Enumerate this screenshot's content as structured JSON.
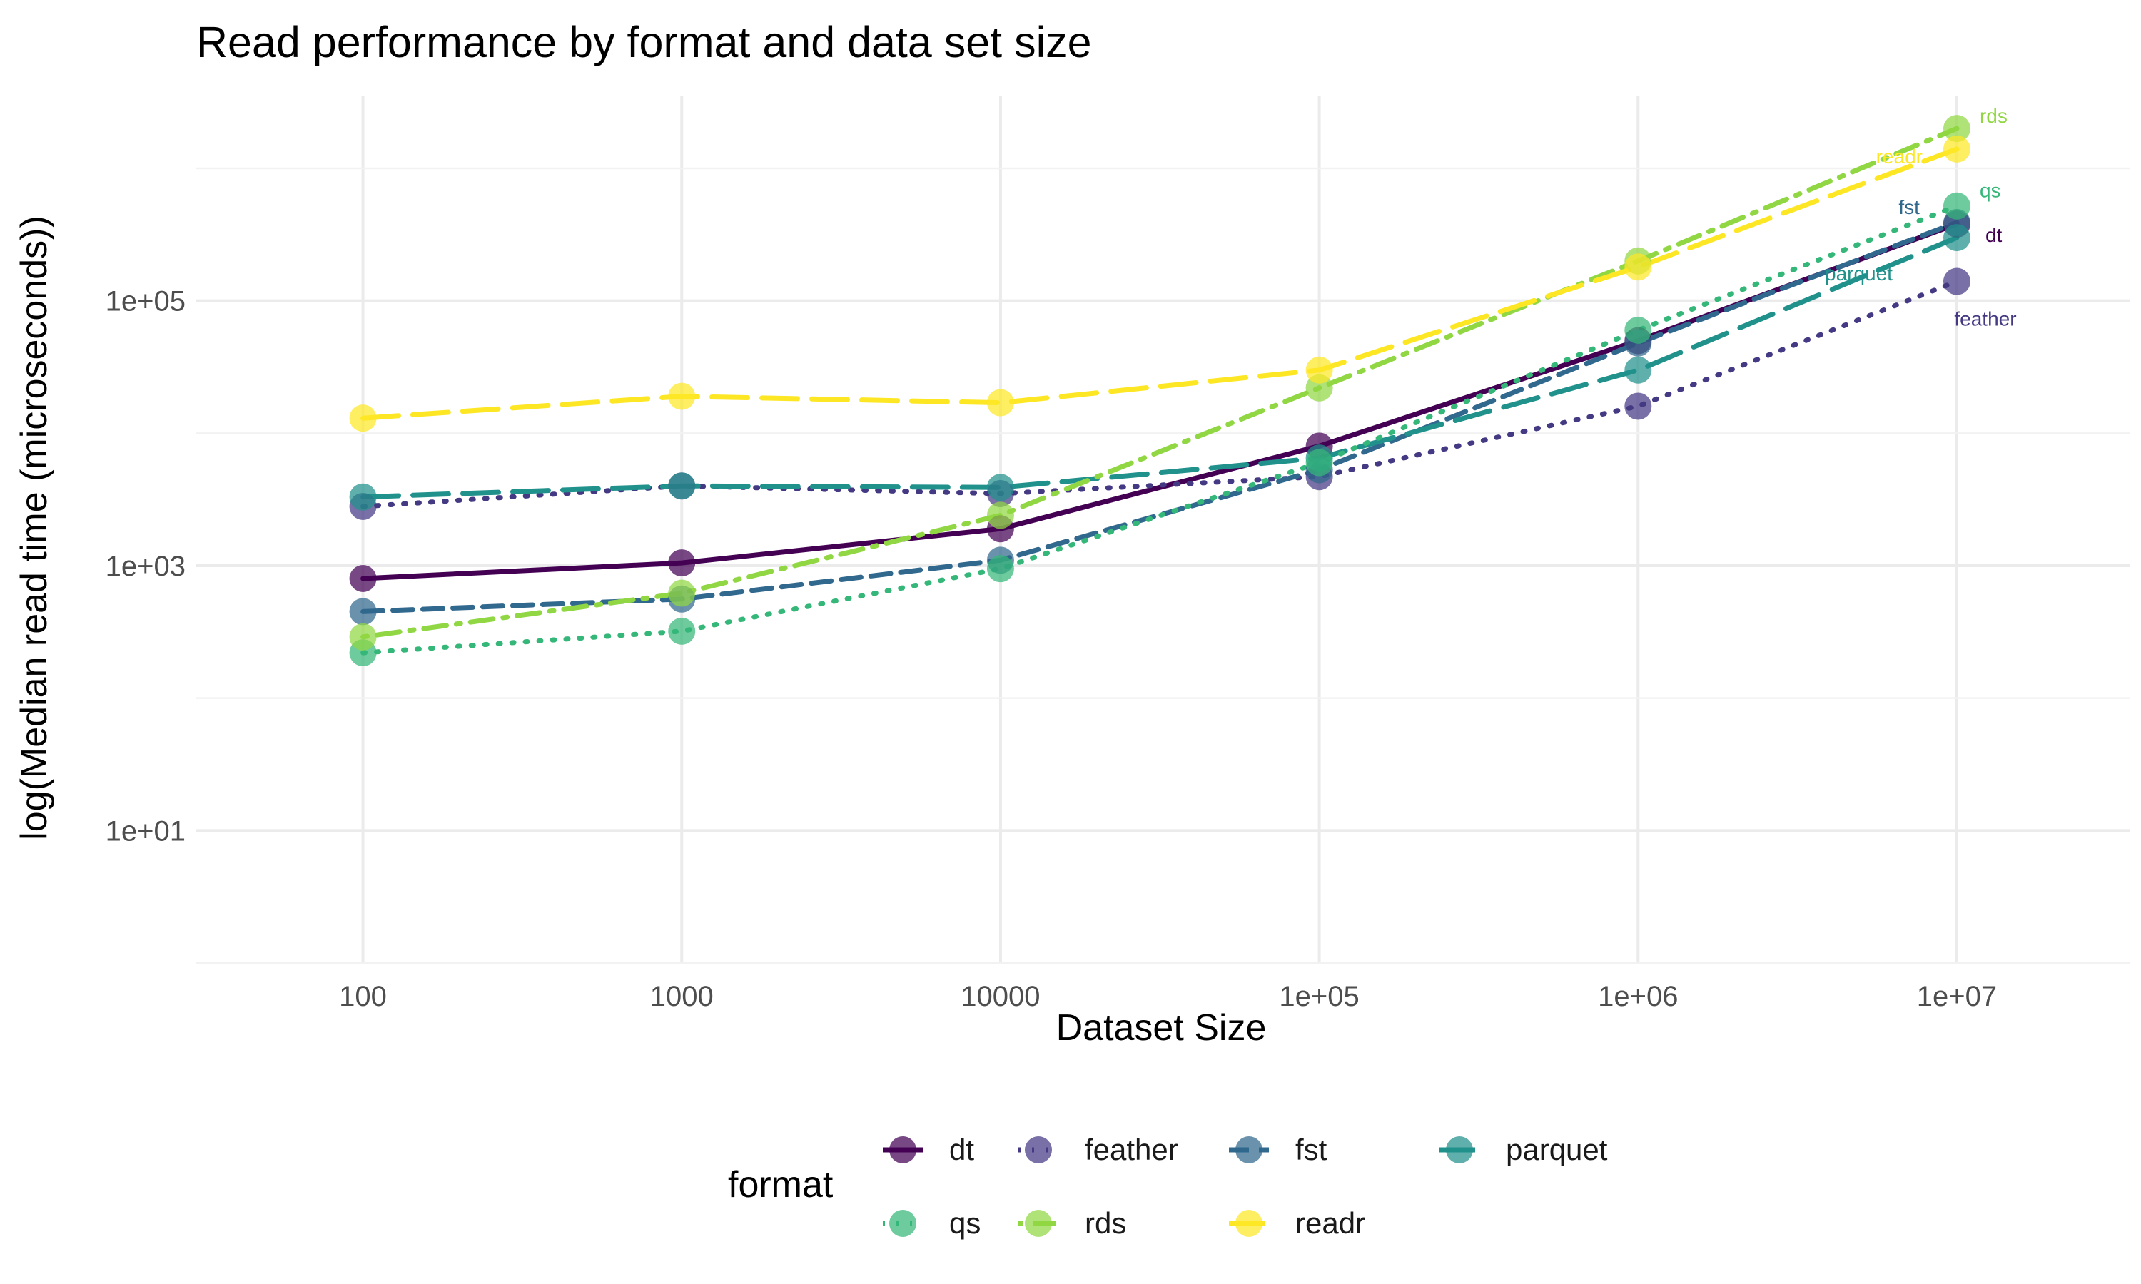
{
  "chart_data": {
    "type": "line",
    "title": "Read performance by format and data set size",
    "xlabel": "Dataset Size",
    "ylabel": "log(Median read time (microseconds))",
    "x_scale": "log10",
    "y_scale": "log10",
    "x": [
      100,
      1000,
      10000,
      100000,
      1000000,
      10000000
    ],
    "x_tick_labels": [
      "100",
      "1000",
      "10000",
      "1e+05",
      "1e+06",
      "1e+07"
    ],
    "y_ticks": [
      10,
      1000,
      100000
    ],
    "y_tick_labels": [
      "1e+01",
      "1e+03",
      "1e+05"
    ],
    "xlim": [
      30,
      35000000
    ],
    "ylim": [
      1,
      3500000
    ],
    "grid": true,
    "legend": {
      "title": "format",
      "position": "bottom"
    },
    "series": [
      {
        "name": "dt",
        "color": "#440154",
        "dash": "solid",
        "values": [
          800,
          1050,
          1900,
          8000,
          50000,
          380000
        ]
      },
      {
        "name": "feather",
        "color": "#443983",
        "dash": "dotted",
        "values": [
          2800,
          4000,
          3500,
          4700,
          16000,
          140000
        ]
      },
      {
        "name": "fst",
        "color": "#31688e",
        "dash": "dashed",
        "values": [
          450,
          560,
          1100,
          5300,
          48000,
          390000
        ]
      },
      {
        "name": "parquet",
        "color": "#21918c",
        "dash": "longdash",
        "values": [
          3300,
          4000,
          3900,
          6500,
          30000,
          300000
        ]
      },
      {
        "name": "qs",
        "color": "#35b779",
        "dash": "dotted",
        "values": [
          220,
          320,
          950,
          6000,
          60000,
          520000
        ]
      },
      {
        "name": "rds",
        "color": "#90d743",
        "dash": "dotdash",
        "values": [
          290,
          620,
          2400,
          22000,
          200000,
          2000000
        ]
      },
      {
        "name": "readr",
        "color": "#fde725",
        "dash": "longdash",
        "values": [
          13000,
          19000,
          17000,
          30000,
          180000,
          1400000
        ]
      }
    ]
  }
}
